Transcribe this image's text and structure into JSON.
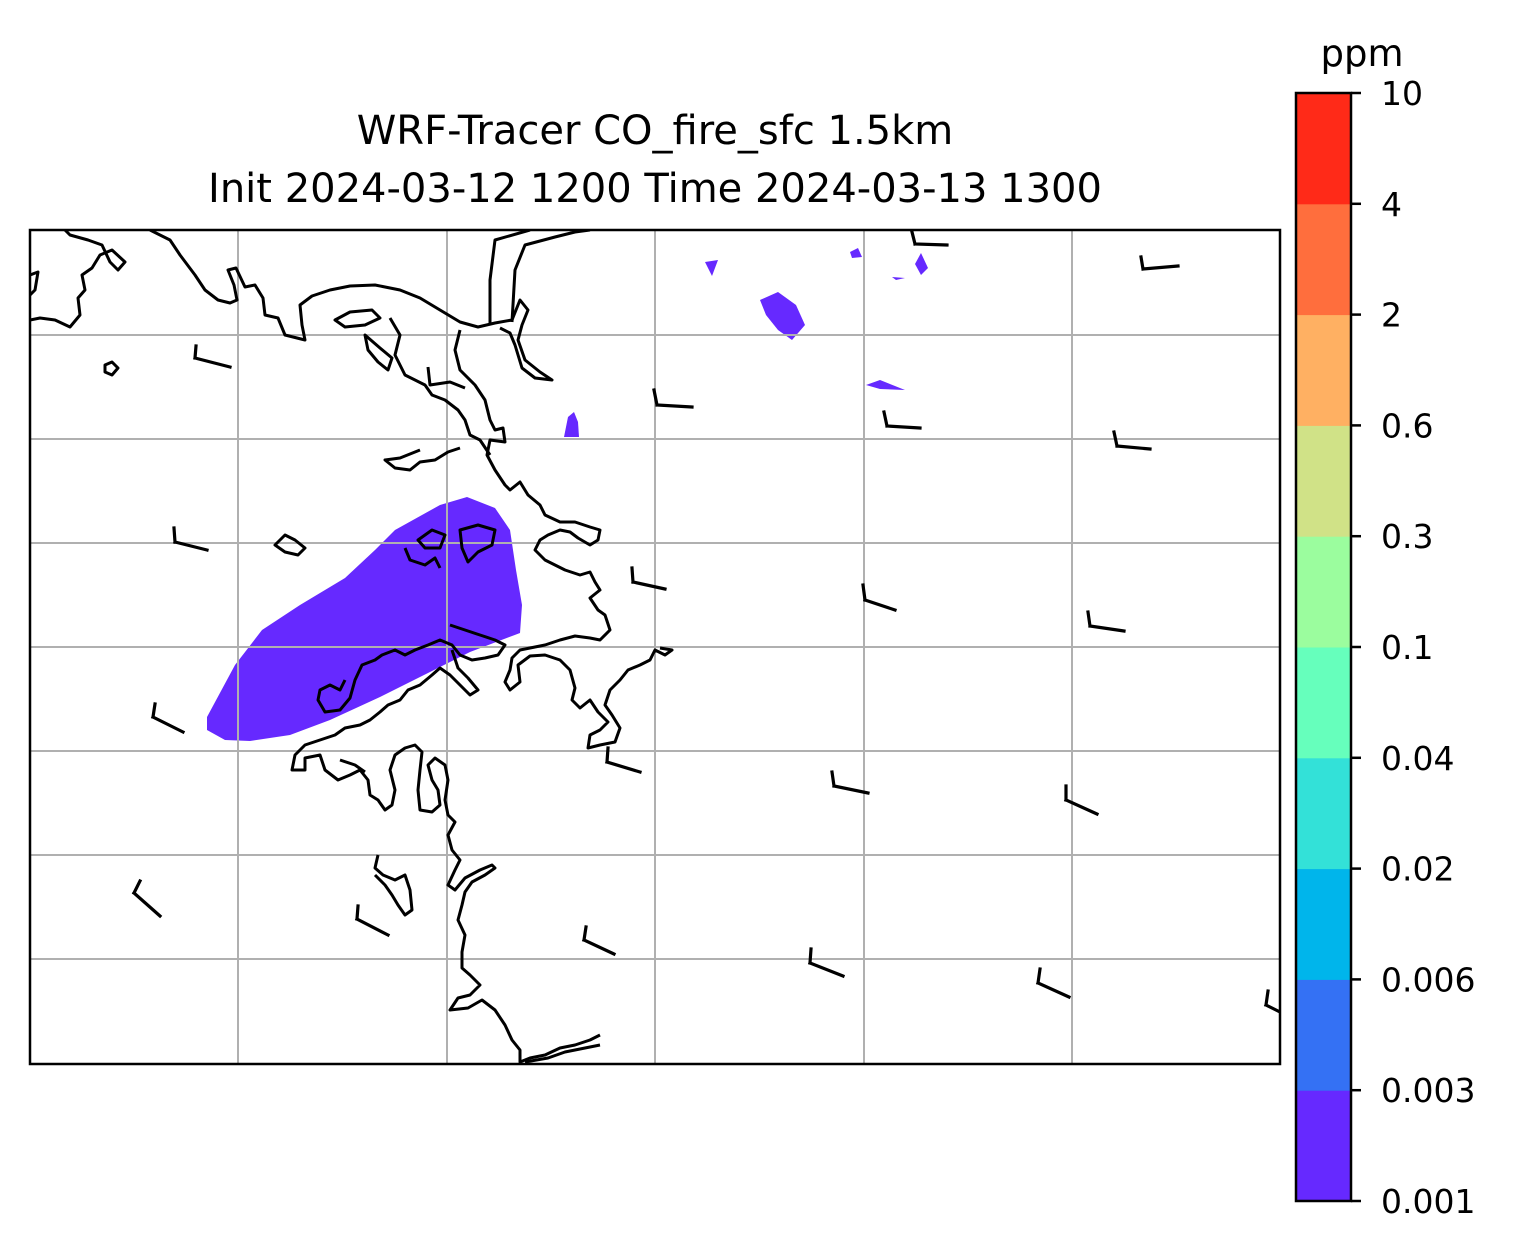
{
  "title": {
    "line1": "WRF-Tracer CO_fire_sfc 1.5km",
    "line2": "Init 2024-03-12 1200 Time 2024-03-13 1300"
  },
  "colorbar": {
    "unit": "ppm",
    "levels": [
      "0.001",
      "0.003",
      "0.006",
      "0.02",
      "0.04",
      "0.1",
      "0.3",
      "0.6",
      "2",
      "4",
      "10"
    ],
    "colors": [
      "#6629ff",
      "#3471f4",
      "#00b5eb",
      "#33e1d8",
      "#66ffbc",
      "#9bfd9e",
      "#d0e287",
      "#ffb062",
      "#ff6e3d",
      "#ff2a18"
    ]
  },
  "map": {
    "plume_color": "#6629ff",
    "gridline_color": "#b0b0b0",
    "coastline_color": "#000000",
    "gridlines": true
  }
}
